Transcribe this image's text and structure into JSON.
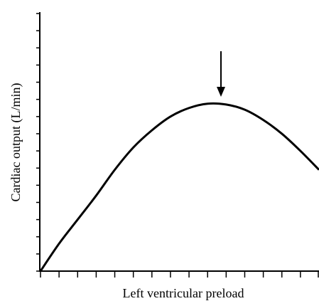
{
  "chart_data": {
    "type": "line",
    "xlabel": "Left ventricular preload",
    "ylabel": "Cardiac output (L/min)",
    "x": [
      0,
      1,
      2,
      3,
      4,
      5,
      6,
      7,
      8,
      9,
      10,
      11,
      12,
      13,
      14,
      15
    ],
    "series": [
      {
        "color": "#000000",
        "values": [
          0,
          1.6,
          3.0,
          4.4,
          5.9,
          7.2,
          8.2,
          9.0,
          9.5,
          9.75,
          9.7,
          9.4,
          8.8,
          8.0,
          7.0,
          5.9
        ]
      }
    ],
    "xlim": [
      0,
      15
    ],
    "ylim": [
      0,
      15
    ],
    "xticks": [
      0,
      1,
      2,
      3,
      4,
      5,
      6,
      7,
      8,
      9,
      10,
      11,
      12,
      13,
      14,
      15
    ],
    "yticks": [
      0,
      1,
      2,
      3,
      4,
      5,
      6,
      7,
      8,
      9,
      10,
      11,
      12,
      13,
      14,
      15
    ]
  }
}
